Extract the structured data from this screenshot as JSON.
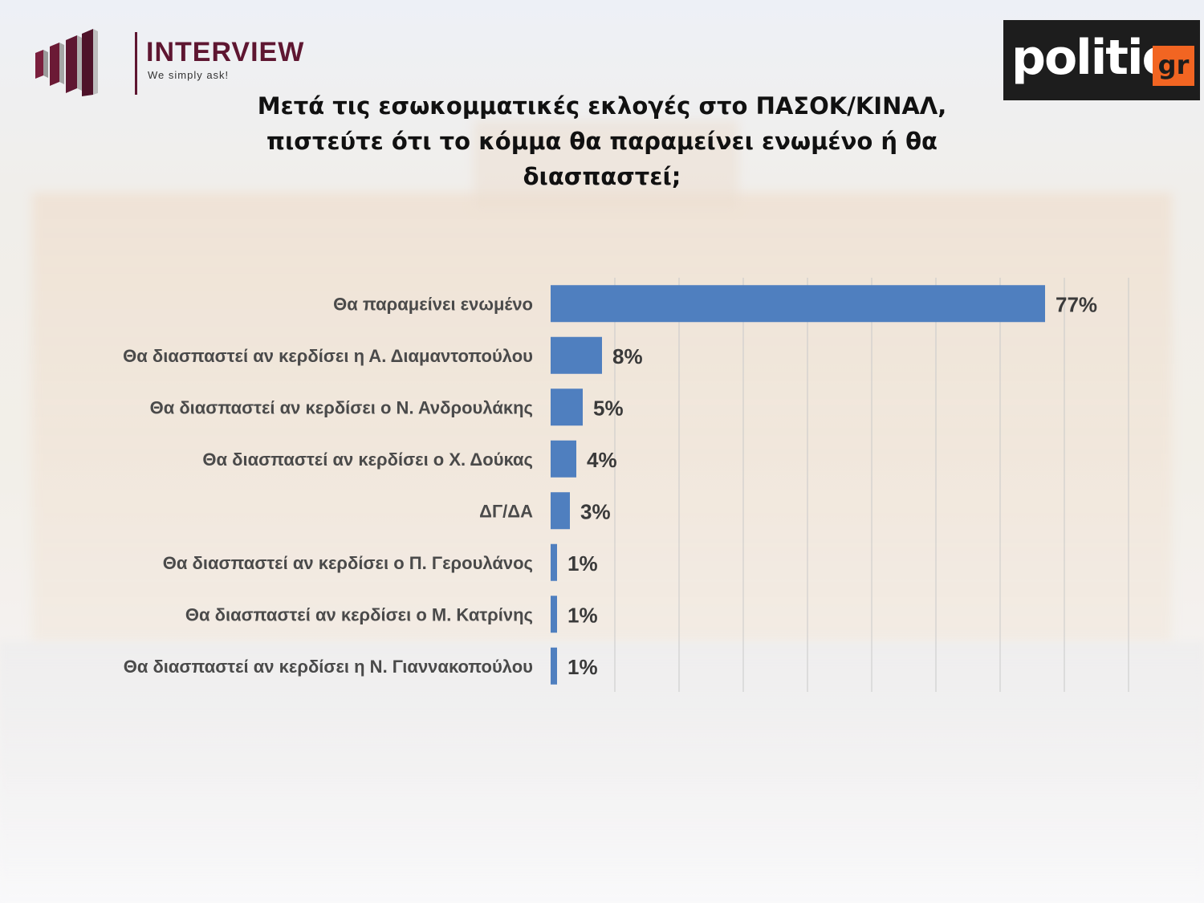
{
  "title": "Μετά τις εσωκομματικές εκλογές στο ΠΑΣΟΚ/ΚΙΝΑΛ, πιστεύτε ότι το κόμμα θα παραμείνει ενωμένο ή θα διασπαστεί;",
  "logos": {
    "interview": {
      "brand": "INTERVIEW",
      "tagline": "We simply ask!"
    },
    "politic": {
      "word": "politic",
      "tld": "gr"
    }
  },
  "colors": {
    "bar": "#4f7fbf",
    "brand_interview": "#5e1631",
    "politic_accent": "#f26522"
  },
  "chart_data": {
    "type": "bar",
    "orientation": "horizontal",
    "categories": [
      "Θα παραμείνει ενωμένο",
      "Θα διασπαστεί αν κερδίσει η Α. Διαμαντοπούλου",
      "Θα διασπαστεί αν κερδίσει ο Ν. Ανδρουλάκης",
      "Θα διασπαστεί αν κερδίσει ο Χ. Δούκας",
      "ΔΓ/ΔΑ",
      "Θα διασπαστεί αν κερδίσει ο Π. Γερουλάνος",
      "Θα διασπαστεί αν κερδίσει ο Μ. Κατρίνης",
      "Θα διασπαστεί αν κερδίσει η Ν. Γιαννακοπούλου"
    ],
    "values": [
      77,
      8,
      5,
      4,
      3,
      1,
      1,
      1
    ],
    "data_labels": [
      "77%",
      "8%",
      "5%",
      "4%",
      "3%",
      "1%",
      "1%",
      "1%"
    ],
    "xlim": [
      0,
      90
    ],
    "grid": true,
    "legend": "none"
  }
}
